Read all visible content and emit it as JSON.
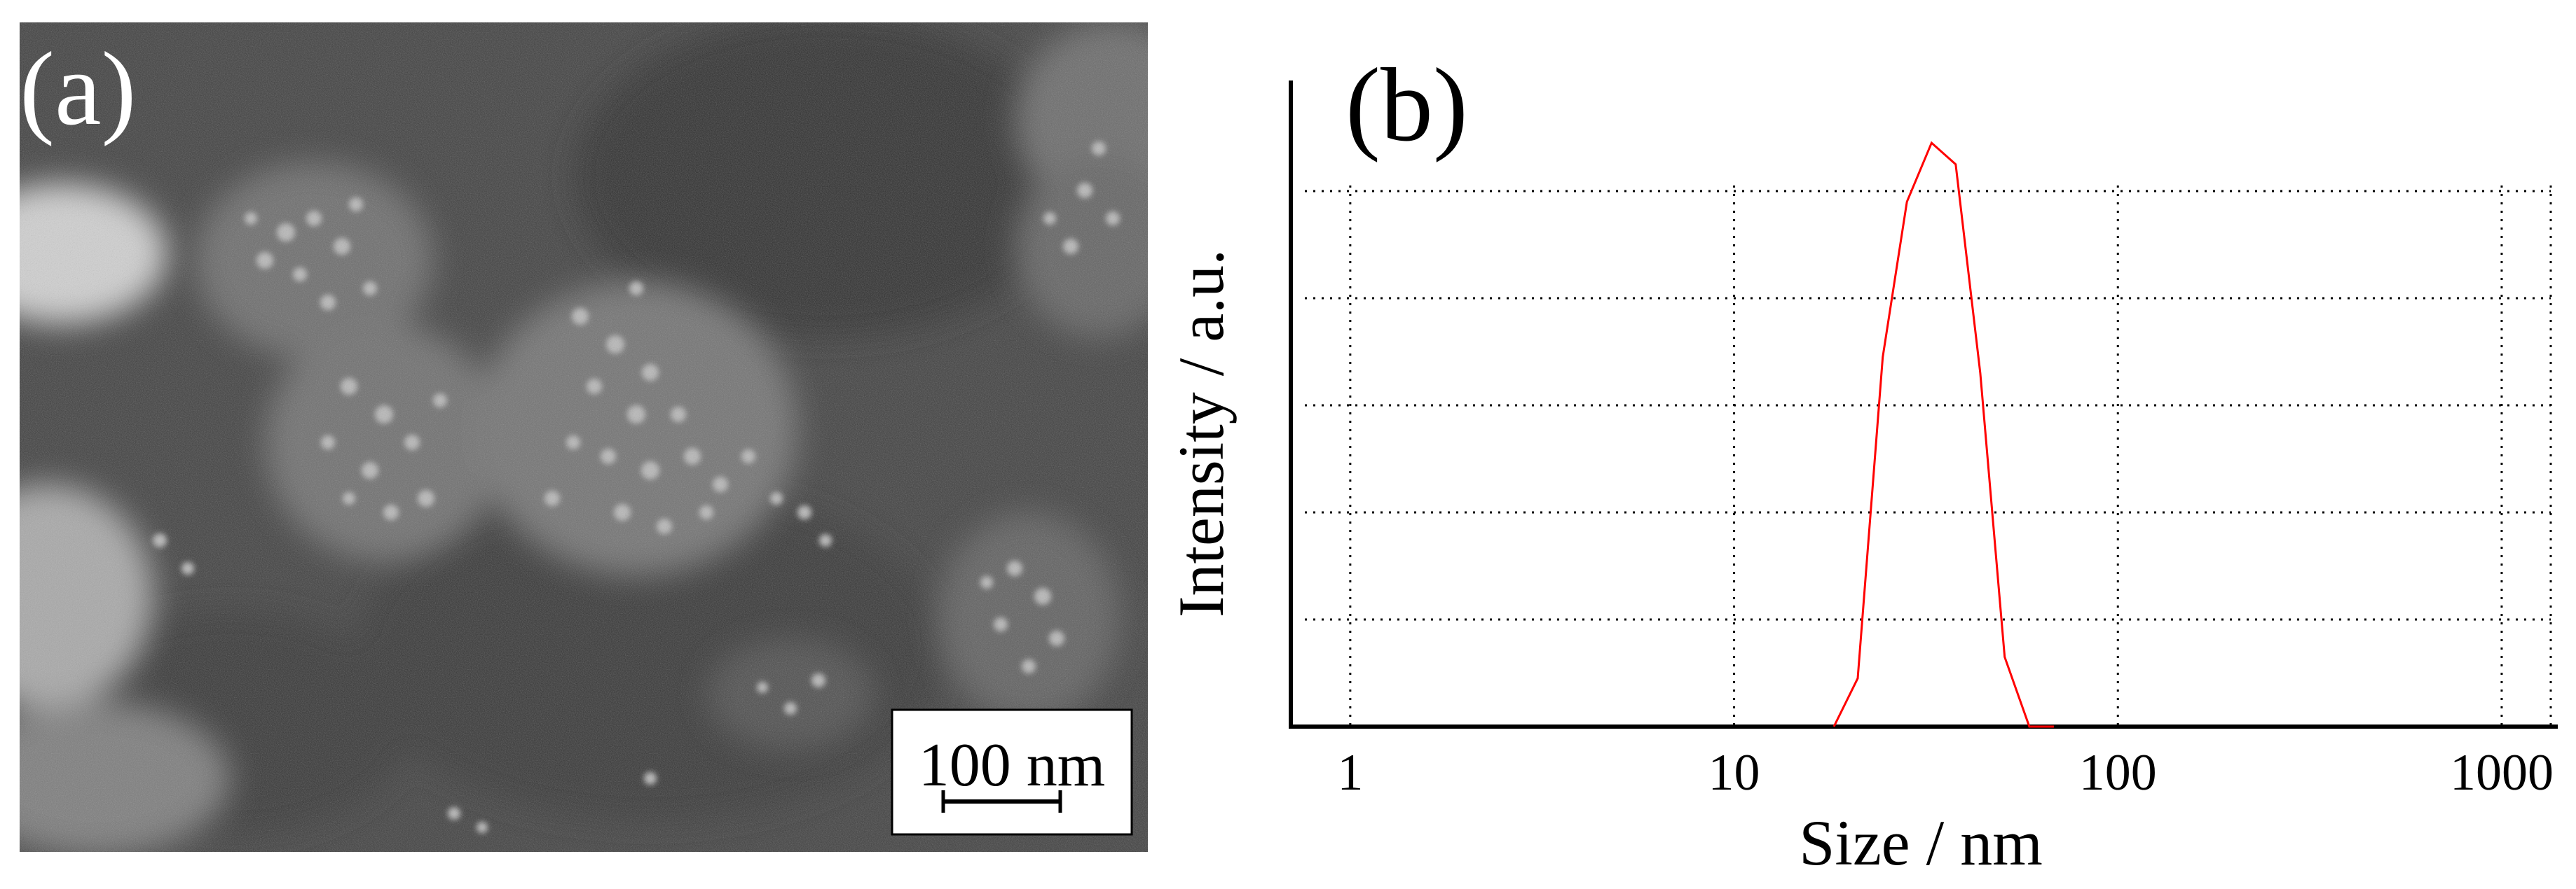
{
  "panel_a": {
    "label": "(a)",
    "scale_bar_label": "100 nm"
  },
  "chart_data": {
    "type": "line",
    "panel_label": "(b)",
    "title": "",
    "xlabel": "Size / nm",
    "ylabel": "Intensity / a.u.",
    "x_scale": "log",
    "xlim": [
      0.7,
      1400
    ],
    "ylim": [
      0,
      1.2
    ],
    "x_ticks": [
      1,
      10,
      100,
      1000
    ],
    "x_tick_labels": [
      "1",
      "10",
      "100",
      "1000"
    ],
    "y_tick_labels": [],
    "grid": true,
    "series": [
      {
        "color": "#ff0000",
        "x": [
          18.2,
          21.0,
          24.4,
          28.2,
          32.7,
          37.8,
          43.8,
          50.7,
          58.8,
          68.1
        ],
        "y": [
          0.0,
          0.09,
          0.69,
          0.98,
          1.09,
          1.05,
          0.66,
          0.13,
          0.0,
          0.0
        ]
      }
    ]
  }
}
